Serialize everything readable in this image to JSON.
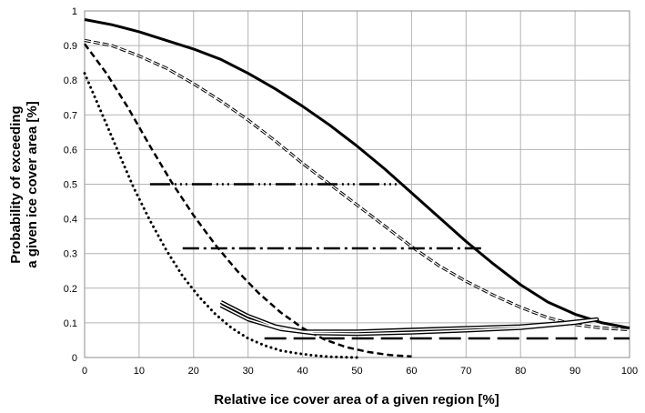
{
  "chart_data": {
    "type": "line",
    "title": "",
    "xlabel": "Relative ice cover area of a given region [%]",
    "ylabel_line1": "Probability of exceeding",
    "ylabel_line2": "a given ice cover area [%]",
    "xlim": [
      0,
      100
    ],
    "ylim": [
      0,
      1
    ],
    "x_ticks": [
      "0",
      "10",
      "20",
      "30",
      "40",
      "50",
      "60",
      "70",
      "80",
      "90",
      "100"
    ],
    "y_ticks": [
      "0",
      "0.1",
      "0.2",
      "0.3",
      "0.4",
      "0.5",
      "0.6",
      "0.7",
      "0.8",
      "0.9",
      "1"
    ],
    "grid": true,
    "legend": "none",
    "series": [
      {
        "style": "solid-thick",
        "points": [
          [
            0,
            0.975
          ],
          [
            5,
            0.96
          ],
          [
            10,
            0.94
          ],
          [
            15,
            0.915
          ],
          [
            20,
            0.89
          ],
          [
            25,
            0.86
          ],
          [
            30,
            0.82
          ],
          [
            35,
            0.775
          ],
          [
            40,
            0.725
          ],
          [
            45,
            0.67
          ],
          [
            50,
            0.61
          ],
          [
            55,
            0.545
          ],
          [
            60,
            0.475
          ],
          [
            65,
            0.405
          ],
          [
            70,
            0.335
          ],
          [
            75,
            0.27
          ],
          [
            80,
            0.21
          ],
          [
            85,
            0.16
          ],
          [
            90,
            0.125
          ],
          [
            95,
            0.1
          ],
          [
            100,
            0.085
          ]
        ]
      },
      {
        "style": "double-dashed",
        "points": [
          [
            0,
            0.915
          ],
          [
            5,
            0.9
          ],
          [
            10,
            0.87
          ],
          [
            15,
            0.835
          ],
          [
            20,
            0.79
          ],
          [
            25,
            0.74
          ],
          [
            30,
            0.685
          ],
          [
            35,
            0.625
          ],
          [
            40,
            0.56
          ],
          [
            45,
            0.5
          ],
          [
            50,
            0.44
          ],
          [
            55,
            0.38
          ],
          [
            60,
            0.32
          ],
          [
            65,
            0.265
          ],
          [
            70,
            0.22
          ],
          [
            75,
            0.18
          ],
          [
            80,
            0.145
          ],
          [
            85,
            0.115
          ],
          [
            90,
            0.095
          ],
          [
            95,
            0.085
          ],
          [
            100,
            0.08
          ]
        ]
      },
      {
        "style": "dashed",
        "points": [
          [
            0,
            0.905
          ],
          [
            4,
            0.82
          ],
          [
            8,
            0.72
          ],
          [
            12,
            0.61
          ],
          [
            16,
            0.505
          ],
          [
            20,
            0.41
          ],
          [
            24,
            0.325
          ],
          [
            28,
            0.25
          ],
          [
            32,
            0.185
          ],
          [
            36,
            0.13
          ],
          [
            40,
            0.085
          ],
          [
            44,
            0.052
          ],
          [
            48,
            0.03
          ],
          [
            52,
            0.016
          ],
          [
            56,
            0.007
          ],
          [
            60,
            0.003
          ]
        ]
      },
      {
        "style": "dotted",
        "points": [
          [
            0,
            0.82
          ],
          [
            3,
            0.71
          ],
          [
            6,
            0.6
          ],
          [
            9,
            0.49
          ],
          [
            12,
            0.395
          ],
          [
            15,
            0.31
          ],
          [
            18,
            0.235
          ],
          [
            21,
            0.175
          ],
          [
            24,
            0.125
          ],
          [
            27,
            0.085
          ],
          [
            30,
            0.055
          ],
          [
            33,
            0.035
          ],
          [
            36,
            0.02
          ],
          [
            39,
            0.012
          ],
          [
            42,
            0.006
          ],
          [
            45,
            0.002
          ],
          [
            50,
            0.0
          ]
        ]
      },
      {
        "style": "dash-dot-dot",
        "points": [
          [
            12,
            0.5
          ],
          [
            58,
            0.5
          ]
        ]
      },
      {
        "style": "dash-dot",
        "points": [
          [
            18,
            0.315
          ],
          [
            73,
            0.315
          ]
        ]
      },
      {
        "style": "double-solid-loop",
        "points": [
          [
            25,
            0.16
          ],
          [
            30,
            0.12
          ],
          [
            35,
            0.09
          ],
          [
            40,
            0.075
          ],
          [
            50,
            0.075
          ],
          [
            60,
            0.08
          ],
          [
            70,
            0.085
          ],
          [
            80,
            0.09
          ],
          [
            88,
            0.1
          ],
          [
            94,
            0.11
          ],
          [
            90,
            0.1
          ],
          [
            80,
            0.085
          ],
          [
            70,
            0.078
          ],
          [
            60,
            0.072
          ],
          [
            50,
            0.068
          ],
          [
            42,
            0.07
          ],
          [
            36,
            0.082
          ],
          [
            30,
            0.11
          ],
          [
            25,
            0.15
          ]
        ]
      },
      {
        "style": "long-dash",
        "points": [
          [
            33,
            0.055
          ],
          [
            100,
            0.055
          ]
        ]
      }
    ]
  }
}
